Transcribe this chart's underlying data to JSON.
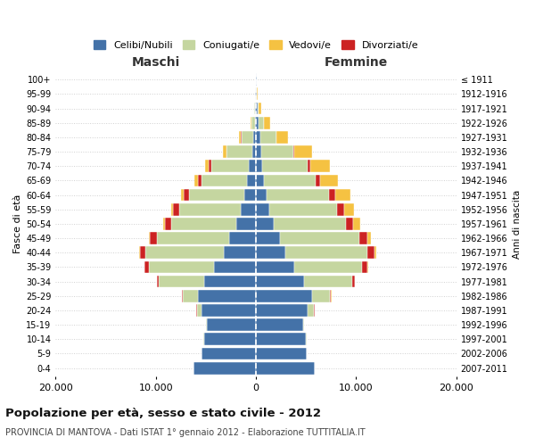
{
  "title_main": "Popolazione per età, sesso e stato civile - 2012",
  "title_sub": "PROVINCIA DI MANTOVA - Dati ISTAT 1° gennaio 2012 - Elaborazione TUTTITALIA.IT",
  "ylabel_left": "Fasce di età",
  "ylabel_right": "Anni di nascita",
  "xlabel_left": "Maschi",
  "xlabel_right": "Femmine",
  "age_groups": [
    "0-4",
    "5-9",
    "10-14",
    "15-19",
    "20-24",
    "25-29",
    "30-34",
    "35-39",
    "40-44",
    "45-49",
    "50-54",
    "55-59",
    "60-64",
    "65-69",
    "70-74",
    "75-79",
    "80-84",
    "85-89",
    "90-94",
    "95-99",
    "100+"
  ],
  "birth_years": [
    "2007-2011",
    "2002-2006",
    "1997-2001",
    "1992-1996",
    "1987-1991",
    "1982-1986",
    "1977-1981",
    "1972-1976",
    "1967-1971",
    "1962-1966",
    "1957-1961",
    "1952-1956",
    "1947-1951",
    "1942-1946",
    "1937-1941",
    "1932-1936",
    "1927-1931",
    "1922-1926",
    "1917-1921",
    "1912-1916",
    "≤ 1911"
  ],
  "legend_labels": [
    "Celibi/Nubili",
    "Coniugati/e",
    "Vedovi/e",
    "Divorziati/e"
  ],
  "colors": [
    "#4472a8",
    "#c5d6a0",
    "#f5c242",
    "#cc2222"
  ],
  "xlim": 20000,
  "xtick_labels": [
    "20.000",
    "10.000",
    "0",
    "10.000",
    "20.000"
  ],
  "males": {
    "celibinubili": [
      6200,
      5400,
      5200,
      4900,
      5400,
      5800,
      5200,
      4200,
      3200,
      2700,
      2000,
      1500,
      1200,
      900,
      700,
      400,
      250,
      120,
      70,
      50,
      20
    ],
    "coniugati": [
      5,
      10,
      30,
      100,
      500,
      1500,
      4500,
      6500,
      7800,
      7200,
      6500,
      6200,
      5500,
      4500,
      3800,
      2500,
      1200,
      350,
      80,
      20,
      10
    ],
    "vedovi": [
      0,
      1,
      2,
      5,
      5,
      10,
      20,
      30,
      50,
      80,
      120,
      200,
      300,
      380,
      350,
      280,
      200,
      80,
      30,
      10,
      5
    ],
    "divorziati": [
      1,
      2,
      5,
      10,
      30,
      80,
      200,
      400,
      600,
      700,
      600,
      600,
      500,
      350,
      200,
      80,
      30,
      20,
      10,
      5,
      2
    ]
  },
  "females": {
    "celibenubili": [
      5900,
      5100,
      5000,
      4700,
      5200,
      5600,
      4800,
      3800,
      2900,
      2400,
      1800,
      1300,
      1100,
      800,
      650,
      500,
      400,
      300,
      180,
      100,
      40
    ],
    "coniugate": [
      5,
      10,
      30,
      120,
      600,
      1800,
      4800,
      6800,
      8200,
      7900,
      7200,
      6800,
      6200,
      5200,
      4500,
      3200,
      1600,
      500,
      100,
      20,
      10
    ],
    "vedove": [
      0,
      1,
      2,
      5,
      10,
      20,
      50,
      100,
      200,
      400,
      700,
      1000,
      1500,
      1800,
      2000,
      1800,
      1200,
      600,
      200,
      50,
      20
    ],
    "divorziate": [
      1,
      2,
      5,
      10,
      40,
      100,
      250,
      500,
      700,
      800,
      700,
      700,
      600,
      400,
      250,
      100,
      40,
      20,
      10,
      5,
      2
    ]
  },
  "background_color": "#ffffff",
  "plot_bg_color": "#ffffff",
  "grid_color": "#d0d0d0",
  "bar_height": 0.85
}
